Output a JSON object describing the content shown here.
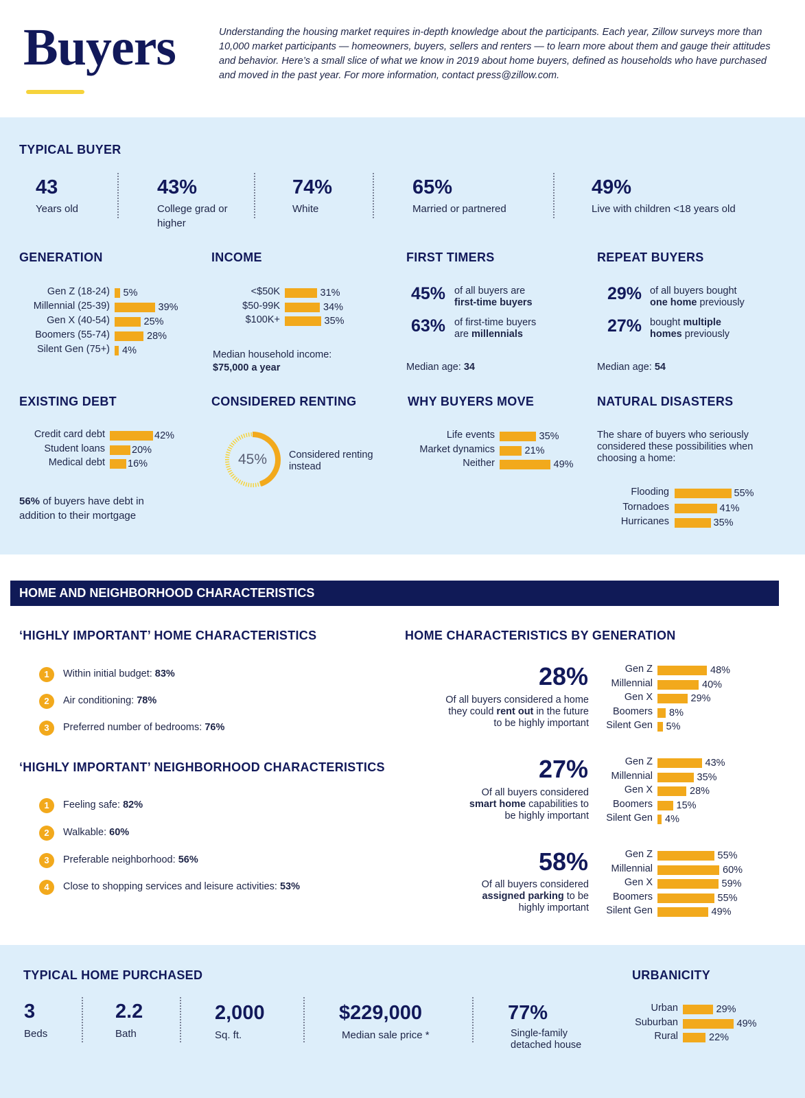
{
  "header": {
    "title": "Buyers",
    "intro": "Understanding the housing market requires in-depth knowledge about the participants. Each year, Zillow surveys more than 10,000 market participants — homeowners, buyers, sellers and renters — to learn more about them and gauge their attitudes and behavior. Here’s a small slice of what we know in 2019 about home buyers, defined as households who have purchased and moved in the past year. For more information, contact press@zillow.com."
  },
  "typical_buyer": {
    "heading": "TYPICAL BUYER",
    "stats": [
      {
        "value": "43",
        "label": "Years old"
      },
      {
        "value": "43%",
        "label": "College grad or higher"
      },
      {
        "value": "74%",
        "label": "White"
      },
      {
        "value": "65%",
        "label": "Married or partnered"
      },
      {
        "value": "49%",
        "label": "Live with children <18 years old"
      }
    ]
  },
  "generation": {
    "heading": "GENERATION"
  },
  "income": {
    "heading": "INCOME",
    "note_line1": "Median household income:",
    "note_line2": "$75,000 a year"
  },
  "first_timers": {
    "heading": "FIRST TIMERS",
    "s1_value": "45%",
    "s1_text": "of all buyers are",
    "s1_bold": "first-time buyers",
    "s2_value": "63%",
    "s2_text": "of first-time buyers",
    "s2_pre": "are ",
    "s2_bold": "millennials",
    "median_label": "Median age: ",
    "median_value": "34"
  },
  "repeat_buyers": {
    "heading": "REPEAT BUYERS",
    "s1_value": "29%",
    "s1_text": "of all buyers bought",
    "s1_bold": "one home",
    "s1_post": " previously",
    "s2_value": "27%",
    "s2_pre": "bought ",
    "s2_bold": "multiple",
    "s2_bold2": "homes",
    "s2_post": " previously",
    "median_label": "Median age: ",
    "median_value": "54"
  },
  "existing_debt": {
    "heading": "EXISTING DEBT",
    "note_bold": "56%",
    "note_rest": " of buyers have debt in",
    "note_line2": "addition to their mortgage"
  },
  "considered_renting": {
    "heading": "CONSIDERED RENTING",
    "value": "45%",
    "fraction": 0.45,
    "label_line1": "Considered renting",
    "label_line2": "instead"
  },
  "why_move": {
    "heading": "WHY BUYERS MOVE"
  },
  "disasters": {
    "heading": "NATURAL DISASTERS",
    "desc1": "The share of buyers who seriously",
    "desc2": "considered these possibilities when",
    "desc3": "choosing a home:"
  },
  "section2": {
    "heading": "HOME AND NEIGHBORHOOD CHARACTERISTICS"
  },
  "home_chars": {
    "heading": "‘HIGHLY IMPORTANT’ HOME CHARACTERISTICS",
    "items": [
      {
        "num": "1",
        "label": "Within initial budget: ",
        "value": "83%"
      },
      {
        "num": "2",
        "label": "Air conditioning:  ",
        "value": "78%"
      },
      {
        "num": "3",
        "label": "Preferred number of bedrooms:  ",
        "value": "76%"
      }
    ]
  },
  "neigh_chars": {
    "heading": "‘HIGHLY IMPORTANT’ NEIGHBORHOOD CHARACTERISTICS",
    "items": [
      {
        "num": "1",
        "label": "Feeling safe:  ",
        "value": "82%"
      },
      {
        "num": "2",
        "label": "Walkable:  ",
        "value": "60%"
      },
      {
        "num": "3",
        "label": "Preferable neighborhood:  ",
        "value": "56%"
      },
      {
        "num": "4",
        "label": "Close to shopping services and leisure activities:  ",
        "value": "53%"
      }
    ]
  },
  "by_generation": {
    "heading": "HOME CHARACTERISTICS BY GENERATION",
    "blocks": [
      {
        "value": "28%",
        "l1": "Of all buyers considered a home",
        "l2a": "they could ",
        "l2b": "rent out",
        "l2c": " in the future",
        "l3a": "",
        "l3b": "",
        "l3c": "to be highly important"
      },
      {
        "value": "27%",
        "l1": "Of all buyers considered",
        "l2a": "",
        "l2b": "smart home",
        "l2c": " capabilities to",
        "l3a": "",
        "l3b": "",
        "l3c": "be highly important"
      },
      {
        "value": "58%",
        "l1": "Of all buyers considered",
        "l2a": "",
        "l2b": "assigned parking",
        "l2c": " to be",
        "l3a": "",
        "l3b": "",
        "l3c": "highly important"
      }
    ]
  },
  "typical_home": {
    "heading": "TYPICAL HOME PURCHASED",
    "stats": [
      {
        "value": "3",
        "label": "Beds"
      },
      {
        "value": "2.2",
        "label": "Bath"
      },
      {
        "value": "2,000",
        "label": "Sq. ft."
      },
      {
        "value": "$229,000",
        "label": "Median sale price *"
      },
      {
        "value": "77%",
        "label": "Single-family detached house"
      }
    ]
  },
  "urbanicity": {
    "heading": "URBANICITY"
  },
  "colors": {
    "bar": "#f2a91c",
    "navy": "#101a57",
    "band": "#ddeefa",
    "accent": "#f6d33b"
  },
  "chart_data": [
    {
      "type": "bar",
      "id": "generation",
      "title": "GENERATION",
      "categories": [
        "Gen Z (18-24)",
        "Millennial (25-39)",
        "Gen X (40-54)",
        "Boomers (55-74)",
        "Silent Gen (75+)"
      ],
      "values": [
        5,
        39,
        25,
        28,
        4
      ],
      "labels": [
        "5%",
        "39%",
        "25%",
        "28%",
        "4%"
      ]
    },
    {
      "type": "bar",
      "id": "income",
      "title": "INCOME",
      "categories": [
        "<$50K",
        "$50-99K",
        "$100K+"
      ],
      "values": [
        31,
        34,
        35
      ],
      "labels": [
        "31%",
        "34%",
        "35%"
      ]
    },
    {
      "type": "bar",
      "id": "debt",
      "title": "EXISTING DEBT",
      "categories": [
        "Credit card debt",
        "Student loans",
        "Medical debt"
      ],
      "values": [
        42,
        20,
        16
      ],
      "labels": [
        "42%",
        "20%",
        "16%"
      ]
    },
    {
      "type": "pie",
      "id": "renting",
      "title": "CONSIDERED RENTING",
      "values": [
        45
      ],
      "labels": [
        "45%"
      ]
    },
    {
      "type": "bar",
      "id": "move",
      "title": "WHY BUYERS MOVE",
      "categories": [
        "Life events",
        "Market dynamics",
        "Neither"
      ],
      "values": [
        35,
        21,
        49
      ],
      "labels": [
        "35%",
        "21%",
        "49%"
      ]
    },
    {
      "type": "bar",
      "id": "disasters",
      "title": "NATURAL DISASTERS",
      "categories": [
        "Flooding",
        "Tornadoes",
        "Hurricanes"
      ],
      "values": [
        55,
        41,
        35
      ],
      "labels": [
        "55%",
        "41%",
        "35%"
      ]
    },
    {
      "type": "bar",
      "id": "rentout",
      "categories": [
        "Gen Z",
        "Millennial",
        "Gen X",
        "Boomers",
        "Silent Gen"
      ],
      "values": [
        48,
        40,
        29,
        8,
        5
      ],
      "labels": [
        "48%",
        "40%",
        "29%",
        "8%",
        "5%"
      ]
    },
    {
      "type": "bar",
      "id": "smarthome",
      "categories": [
        "Gen Z",
        "Millennial",
        "Gen X",
        "Boomers",
        "Silent Gen"
      ],
      "values": [
        43,
        35,
        28,
        15,
        4
      ],
      "labels": [
        "43%",
        "35%",
        "28%",
        "15%",
        "4%"
      ]
    },
    {
      "type": "bar",
      "id": "parking",
      "categories": [
        "Gen Z",
        "Millennial",
        "Gen X",
        "Boomers",
        "Silent Gen"
      ],
      "values": [
        55,
        60,
        59,
        55,
        49
      ],
      "labels": [
        "55%",
        "60%",
        "59%",
        "55%",
        "49%"
      ]
    },
    {
      "type": "bar",
      "id": "urbanicity",
      "title": "URBANICITY",
      "categories": [
        "Urban",
        "Suburban",
        "Rural"
      ],
      "values": [
        29,
        49,
        22
      ],
      "labels": [
        "29%",
        "49%",
        "22%"
      ]
    }
  ]
}
